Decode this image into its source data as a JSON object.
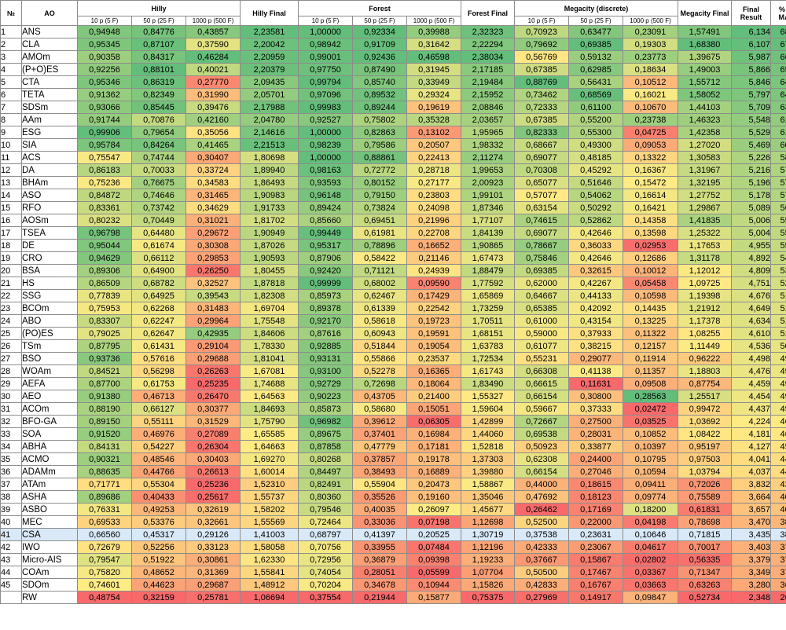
{
  "headers": {
    "num": "№",
    "ao": "AO",
    "hilly": "Hilly",
    "hilly_final": "Hilly Final",
    "forest": "Forest",
    "forest_final": "Forest Final",
    "megacity": "Megacity (discrete)",
    "megacity_final": "Megacity Final",
    "final_result": "Final Result",
    "pct_max": "% of MAX",
    "sub": [
      "10 p (5 F)",
      "50 p (25 F)",
      "1000 p (500 F)"
    ]
  },
  "colors": {
    "scale": [
      "#f8696b",
      "#ffeb84",
      "#63be7b"
    ],
    "selected_row": "#d9e9f7"
  },
  "selected_row_index": 40,
  "rows": [
    [
      "1",
      "ANS",
      "0,94948",
      "0,84776",
      "0,43857",
      "2,23581",
      "1,00000",
      "0,92334",
      "0,39988",
      "2,32323",
      "0,70923",
      "0,63477",
      "0,23091",
      "1,57491",
      "6,134",
      "68,15"
    ],
    [
      "2",
      "CLA",
      "0,95345",
      "0,87107",
      "0,37590",
      "2,20042",
      "0,98942",
      "0,91709",
      "0,31642",
      "2,22294",
      "0,79692",
      "0,69385",
      "0,19303",
      "1,68380",
      "6,107",
      "67,86"
    ],
    [
      "3",
      "AMOm",
      "0,90358",
      "0,84317",
      "0,46284",
      "2,20959",
      "0,99001",
      "0,92436",
      "0,46598",
      "2,38034",
      "0,56769",
      "0,59132",
      "0,23773",
      "1,39675",
      "5,987",
      "66,52"
    ],
    [
      "4",
      "(P+O)ES",
      "0,92256",
      "0,88101",
      "0,40021",
      "2,20379",
      "0,97750",
      "0,87490",
      "0,31945",
      "2,17185",
      "0,67385",
      "0,62985",
      "0,18634",
      "1,49003",
      "5,866",
      "65,17"
    ],
    [
      "5",
      "CTA",
      "0,95346",
      "0,86319",
      "0,27770",
      "2,09435",
      "0,99794",
      "0,85740",
      "0,33949",
      "2,19484",
      "0,88769",
      "0,56431",
      "0,10512",
      "1,55712",
      "5,846",
      "64,96"
    ],
    [
      "6",
      "TETA",
      "0,91362",
      "0,82349",
      "0,31990",
      "2,05701",
      "0,97096",
      "0,89532",
      "0,29324",
      "2,15952",
      "0,73462",
      "0,68569",
      "0,16021",
      "1,58052",
      "5,797",
      "64,41"
    ],
    [
      "7",
      "SDSm",
      "0,93066",
      "0,85445",
      "0,39476",
      "2,17988",
      "0,99983",
      "0,89244",
      "0,19619",
      "2,08846",
      "0,72333",
      "0,61100",
      "0,10670",
      "1,44103",
      "5,709",
      "63,44"
    ],
    [
      "8",
      "AAm",
      "0,91744",
      "0,70876",
      "0,42160",
      "2,04780",
      "0,92527",
      "0,75802",
      "0,35328",
      "2,03657",
      "0,67385",
      "0,55200",
      "0,23738",
      "1,46323",
      "5,548",
      "61,64"
    ],
    [
      "9",
      "ESG",
      "0,99906",
      "0,79654",
      "0,35056",
      "2,14616",
      "1,00000",
      "0,82863",
      "0,13102",
      "1,95965",
      "0,82333",
      "0,55300",
      "0,04725",
      "1,42358",
      "5,529",
      "61,44"
    ],
    [
      "10",
      "SIA",
      "0,95784",
      "0,84264",
      "0,41465",
      "2,21513",
      "0,98239",
      "0,79586",
      "0,20507",
      "1,98332",
      "0,68667",
      "0,49300",
      "0,09053",
      "1,27020",
      "5,469",
      "60,76"
    ],
    [
      "11",
      "ACS",
      "0,75547",
      "0,74744",
      "0,30407",
      "1,80698",
      "1,00000",
      "0,88861",
      "0,22413",
      "2,11274",
      "0,69077",
      "0,48185",
      "0,13322",
      "1,30583",
      "5,226",
      "58,06"
    ],
    [
      "12",
      "DA",
      "0,86183",
      "0,70033",
      "0,33724",
      "1,89940",
      "0,98163",
      "0,72772",
      "0,28718",
      "1,99653",
      "0,70308",
      "0,45292",
      "0,16367",
      "1,31967",
      "5,216",
      "57,95"
    ],
    [
      "13",
      "BHAm",
      "0,75236",
      "0,76675",
      "0,34583",
      "1,86493",
      "0,93593",
      "0,80152",
      "0,27177",
      "2,00923",
      "0,65077",
      "0,51646",
      "0,15472",
      "1,32195",
      "5,196",
      "57,73"
    ],
    [
      "14",
      "ASO",
      "0,84872",
      "0,74646",
      "0,31465",
      "1,90983",
      "0,96148",
      "0,79150",
      "0,23803",
      "1,99101",
      "0,57077",
      "0,54062",
      "0,16614",
      "1,27752",
      "5,178",
      "57,54"
    ],
    [
      "15",
      "RFO",
      "0,83361",
      "0,73742",
      "0,34629",
      "1,91733",
      "0,89424",
      "0,73824",
      "0,24098",
      "1,87346",
      "0,63154",
      "0,50292",
      "0,16421",
      "1,29867",
      "5,089",
      "56,55"
    ],
    [
      "16",
      "AOSm",
      "0,80232",
      "0,70449",
      "0,31021",
      "1,81702",
      "0,85660",
      "0,69451",
      "0,21996",
      "1,77107",
      "0,74615",
      "0,52862",
      "0,14358",
      "1,41835",
      "5,006",
      "55,63"
    ],
    [
      "17",
      "TSEA",
      "0,96798",
      "0,64480",
      "0,29672",
      "1,90949",
      "0,99449",
      "0,61981",
      "0,22708",
      "1,84139",
      "0,69077",
      "0,42646",
      "0,13598",
      "1,25322",
      "5,004",
      "55,60"
    ],
    [
      "18",
      "DE",
      "0,95044",
      "0,61674",
      "0,30308",
      "1,87026",
      "0,95317",
      "0,78896",
      "0,16652",
      "1,90865",
      "0,78667",
      "0,36033",
      "0,02953",
      "1,17653",
      "4,955",
      "55,06"
    ],
    [
      "19",
      "CRO",
      "0,94629",
      "0,66112",
      "0,29853",
      "1,90593",
      "0,87906",
      "0,58422",
      "0,21146",
      "1,67473",
      "0,75846",
      "0,42646",
      "0,12686",
      "1,31178",
      "4,892",
      "54,36"
    ],
    [
      "20",
      "BSA",
      "0,89306",
      "0,64900",
      "0,26250",
      "1,80455",
      "0,92420",
      "0,71121",
      "0,24939",
      "1,88479",
      "0,69385",
      "0,32615",
      "0,10012",
      "1,12012",
      "4,809",
      "53,44"
    ],
    [
      "21",
      "HS",
      "0,86509",
      "0,68782",
      "0,32527",
      "1,87818",
      "0,99999",
      "0,68002",
      "0,09590",
      "1,77592",
      "0,62000",
      "0,42267",
      "0,05458",
      "1,09725",
      "4,751",
      "52,79"
    ],
    [
      "22",
      "SSG",
      "0,77839",
      "0,64925",
      "0,39543",
      "1,82308",
      "0,85973",
      "0,62467",
      "0,17429",
      "1,65869",
      "0,64667",
      "0,44133",
      "0,10598",
      "1,19398",
      "4,676",
      "51,95"
    ],
    [
      "23",
      "BCOm",
      "0,75953",
      "0,62268",
      "0,31483",
      "1,69704",
      "0,89378",
      "0,61339",
      "0,22542",
      "1,73259",
      "0,65385",
      "0,42092",
      "0,14435",
      "1,21912",
      "4,649",
      "51,65"
    ],
    [
      "24",
      "ABO",
      "0,83307",
      "0,62247",
      "0,29964",
      "1,75548",
      "0,92170",
      "0,58618",
      "0,19723",
      "1,70511",
      "0,61000",
      "0,43154",
      "0,13225",
      "1,17378",
      "4,634",
      "51,49"
    ],
    [
      "25",
      "(PO)ES",
      "0,79025",
      "0,62647",
      "0,42935",
      "1,84606",
      "0,87616",
      "0,60943",
      "0,19591",
      "1,68151",
      "0,59000",
      "0,37933",
      "0,11322",
      "1,08255",
      "4,610",
      "51,22"
    ],
    [
      "26",
      "TSm",
      "0,87795",
      "0,61431",
      "0,29104",
      "1,78330",
      "0,92885",
      "0,51844",
      "0,19054",
      "1,63783",
      "0,61077",
      "0,38215",
      "0,12157",
      "1,11449",
      "4,536",
      "50,40"
    ],
    [
      "27",
      "BSO",
      "0,93736",
      "0,57616",
      "0,29688",
      "1,81041",
      "0,93131",
      "0,55866",
      "0,23537",
      "1,72534",
      "0,55231",
      "0,29077",
      "0,11914",
      "0,96222",
      "4,498",
      "49,98"
    ],
    [
      "28",
      "WOAm",
      "0,84521",
      "0,56298",
      "0,26263",
      "1,67081",
      "0,93100",
      "0,52278",
      "0,16365",
      "1,61743",
      "0,66308",
      "0,41138",
      "0,11357",
      "1,18803",
      "4,476",
      "49,74"
    ],
    [
      "29",
      "AEFA",
      "0,87700",
      "0,61753",
      "0,25235",
      "1,74688",
      "0,92729",
      "0,72698",
      "0,18064",
      "1,83490",
      "0,66615",
      "0,11631",
      "0,09508",
      "0,87754",
      "4,459",
      "49,55"
    ],
    [
      "30",
      "AEO",
      "0,91380",
      "0,46713",
      "0,26470",
      "1,64563",
      "0,90223",
      "0,43705",
      "0,21400",
      "1,55327",
      "0,66154",
      "0,30800",
      "0,28563",
      "1,25517",
      "4,454",
      "49,49"
    ],
    [
      "31",
      "ACOm",
      "0,88190",
      "0,66127",
      "0,30377",
      "1,84693",
      "0,85873",
      "0,58680",
      "0,15051",
      "1,59604",
      "0,59667",
      "0,37333",
      "0,02472",
      "0,99472",
      "4,437",
      "49,30"
    ],
    [
      "32",
      "BFO-GA",
      "0,89150",
      "0,55111",
      "0,31529",
      "1,75790",
      "0,96982",
      "0,39612",
      "0,06305",
      "1,42899",
      "0,72667",
      "0,27500",
      "0,03525",
      "1,03692",
      "4,224",
      "46,93"
    ],
    [
      "33",
      "SOA",
      "0,91520",
      "0,46976",
      "0,27089",
      "1,65585",
      "0,89675",
      "0,37401",
      "0,16984",
      "1,44060",
      "0,69538",
      "0,28031",
      "0,10852",
      "1,08422",
      "4,181",
      "46,45"
    ],
    [
      "34",
      "ABHA",
      "0,84131",
      "0,54227",
      "0,26304",
      "1,64663",
      "0,87858",
      "0,47779",
      "0,17181",
      "1,52818",
      "0,50923",
      "0,33877",
      "0,10397",
      "0,95197",
      "4,127",
      "45,85"
    ],
    [
      "35",
      "ACMO",
      "0,90321",
      "0,48546",
      "0,30403",
      "1,69270",
      "0,80268",
      "0,37857",
      "0,19178",
      "1,37303",
      "0,62308",
      "0,24400",
      "0,10795",
      "0,97503",
      "4,041",
      "44,90"
    ],
    [
      "36",
      "ADAMm",
      "0,88635",
      "0,44766",
      "0,26613",
      "1,60014",
      "0,84497",
      "0,38493",
      "0,16889",
      "1,39880",
      "0,66154",
      "0,27046",
      "0,10594",
      "1,03794",
      "4,037",
      "44,85"
    ],
    [
      "37",
      "ATAm",
      "0,71771",
      "0,55304",
      "0,25236",
      "1,52310",
      "0,82491",
      "0,55904",
      "0,20473",
      "1,58867",
      "0,44000",
      "0,18615",
      "0,09411",
      "0,72026",
      "3,832",
      "42,58"
    ],
    [
      "38",
      "ASHA",
      "0,89686",
      "0,40433",
      "0,25617",
      "1,55737",
      "0,80360",
      "0,35526",
      "0,19160",
      "1,35046",
      "0,47692",
      "0,18123",
      "0,09774",
      "0,75589",
      "3,664",
      "40,71"
    ],
    [
      "39",
      "ASBO",
      "0,76331",
      "0,49253",
      "0,32619",
      "1,58202",
      "0,79546",
      "0,40035",
      "0,26097",
      "1,45677",
      "0,26462",
      "0,17169",
      "0,18200",
      "0,61831",
      "3,657",
      "40,63"
    ],
    [
      "40",
      "MEC",
      "0,69533",
      "0,53376",
      "0,32661",
      "1,55569",
      "0,72464",
      "0,33036",
      "0,07198",
      "1,12698",
      "0,52500",
      "0,22000",
      "0,04198",
      "0,78698",
      "3,470",
      "38,55"
    ],
    [
      "41",
      "CSA",
      "0,66560",
      "0,45317",
      "0,29126",
      "1,41003",
      "0,68797",
      "0,41397",
      "0,20525",
      "1,30719",
      "0,37538",
      "0,23631",
      "0,10646",
      "0,71815",
      "3,435",
      "38,17"
    ],
    [
      "42",
      "IWO",
      "0,72679",
      "0,52256",
      "0,33123",
      "1,58058",
      "0,70756",
      "0,33955",
      "0,07484",
      "1,12196",
      "0,42333",
      "0,23067",
      "0,04617",
      "0,70017",
      "3,403",
      "37,81"
    ],
    [
      "43",
      "Micro-AIS",
      "0,79547",
      "0,51922",
      "0,30861",
      "1,62330",
      "0,72956",
      "0,36879",
      "0,09398",
      "1,19233",
      "0,37667",
      "0,15867",
      "0,02802",
      "0,56335",
      "3,379",
      "37,54"
    ],
    [
      "44",
      "COAm",
      "0,75820",
      "0,48652",
      "0,31369",
      "1,55841",
      "0,74054",
      "0,28051",
      "0,05599",
      "1,07704",
      "0,50500",
      "0,17467",
      "0,03367",
      "0,71347",
      "3,349",
      "37,21"
    ],
    [
      "45",
      "SDOm",
      "0,74601",
      "0,44623",
      "0,29687",
      "1,48912",
      "0,70204",
      "0,34678",
      "0,10944",
      "1,15826",
      "0,42833",
      "0,16767",
      "0,03663",
      "0,63263",
      "3,280",
      "36,44"
    ],
    [
      "",
      "RW",
      "0,48754",
      "0,32159",
      "0,25781",
      "1,06694",
      "0,37554",
      "0,21944",
      "0,15877",
      "0,75375",
      "0,27969",
      "0,14917",
      "0,09847",
      "0,52734",
      "2,348",
      "26,09"
    ]
  ]
}
